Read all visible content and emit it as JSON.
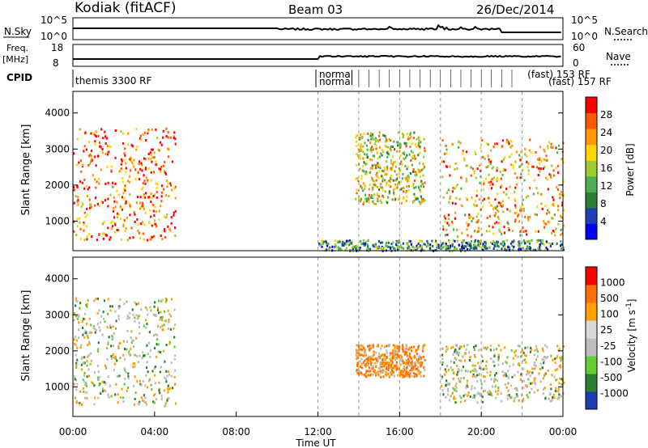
{
  "header": {
    "station": "Kodiak (fitACF)",
    "beam": "Beam 03",
    "date": "26/Dec/2014"
  },
  "strips": {
    "nsky_label": "N.Sky",
    "nsearch_label": "N.Search",
    "freq_label_line1": "Freq.",
    "freq_label_line2": "[MHz]",
    "nave_label": "Nave",
    "cpid_label": "CPID",
    "noise_ticks_left": [
      "10^5",
      "10^0"
    ],
    "noise_ticks_right": [
      "10^5",
      "10^0"
    ],
    "freq_ticks_left": [
      "18",
      "8"
    ],
    "nave_ticks_right": [
      "60",
      "0"
    ],
    "cpid_text_1": "themis 3300 RF",
    "cpid_text_2_top": "normal",
    "cpid_text_2_bottom": "normal",
    "cpid_text_3": "(fast) 153 RF",
    "cpid_text_4": "(fast) 157 RF"
  },
  "colors": {
    "power_scale": [
      "#0000ff",
      "#1f3fb4",
      "#2e7d32",
      "#4caf50",
      "#9ccc2e",
      "#ffd700",
      "#ff9800",
      "#ff5a00",
      "#ff0000"
    ],
    "velocity_scale": [
      "#1c3cb4",
      "#2e7d32",
      "#66cc33",
      "#bdbdbd",
      "#d8d8d8",
      "#ffa000",
      "#ff7000",
      "#ff0000"
    ],
    "ground_scatter": "#bbbbbb"
  },
  "chart_data": [
    {
      "type": "heatmap",
      "name": "Power",
      "ylabel": "Slant Range [km]",
      "colorbar_label": "Power [dB]",
      "colorbar_ticks": [
        "28",
        "24",
        "20",
        "16",
        "12",
        "8",
        "4"
      ],
      "ylim": [
        180,
        4600
      ],
      "yticks": [
        "4000",
        "3000",
        "2000",
        "1000"
      ],
      "xlim": [
        0,
        24
      ],
      "xticks": [
        "00:00",
        "04:00",
        "08:00",
        "12:00",
        "16:00",
        "20:00",
        "00:00"
      ],
      "xlabel": "Time UT",
      "regions": [
        {
          "t": [
            0.0,
            5.0
          ],
          "range": [
            500,
            3600
          ],
          "power": 24
        },
        {
          "t": [
            12.0,
            24.0
          ],
          "range": [
            200,
            500
          ],
          "power": 8
        },
        {
          "t": [
            13.8,
            17.2
          ],
          "range": [
            1500,
            3500
          ],
          "power": 16
        },
        {
          "t": [
            18.0,
            24.0
          ],
          "range": [
            600,
            3300
          ],
          "power": 20
        }
      ]
    },
    {
      "type": "heatmap",
      "name": "Velocity",
      "ylabel": "Slant Range [km]",
      "colorbar_label": "Velocity [m s^-1]",
      "colorbar_ticks": [
        "1000",
        "500",
        "100",
        "25",
        "-25",
        "-100",
        "-500",
        "-1000"
      ],
      "ylim": [
        180,
        4600
      ],
      "yticks": [
        "4000",
        "3000",
        "2000",
        "1000"
      ],
      "xlim": [
        0,
        24
      ],
      "xticks": [
        "00:00",
        "04:00",
        "08:00",
        "12:00",
        "16:00",
        "20:00",
        "00:00"
      ],
      "xlabel": "Time UT",
      "regions": [
        {
          "t": [
            0.0,
            5.0
          ],
          "range": [
            500,
            3500
          ],
          "velocity": 0
        },
        {
          "t": [
            13.8,
            17.2
          ],
          "range": [
            1300,
            2200
          ],
          "velocity": -150
        },
        {
          "t": [
            18.0,
            24.0
          ],
          "range": [
            600,
            2200
          ],
          "velocity": 0
        }
      ]
    }
  ]
}
